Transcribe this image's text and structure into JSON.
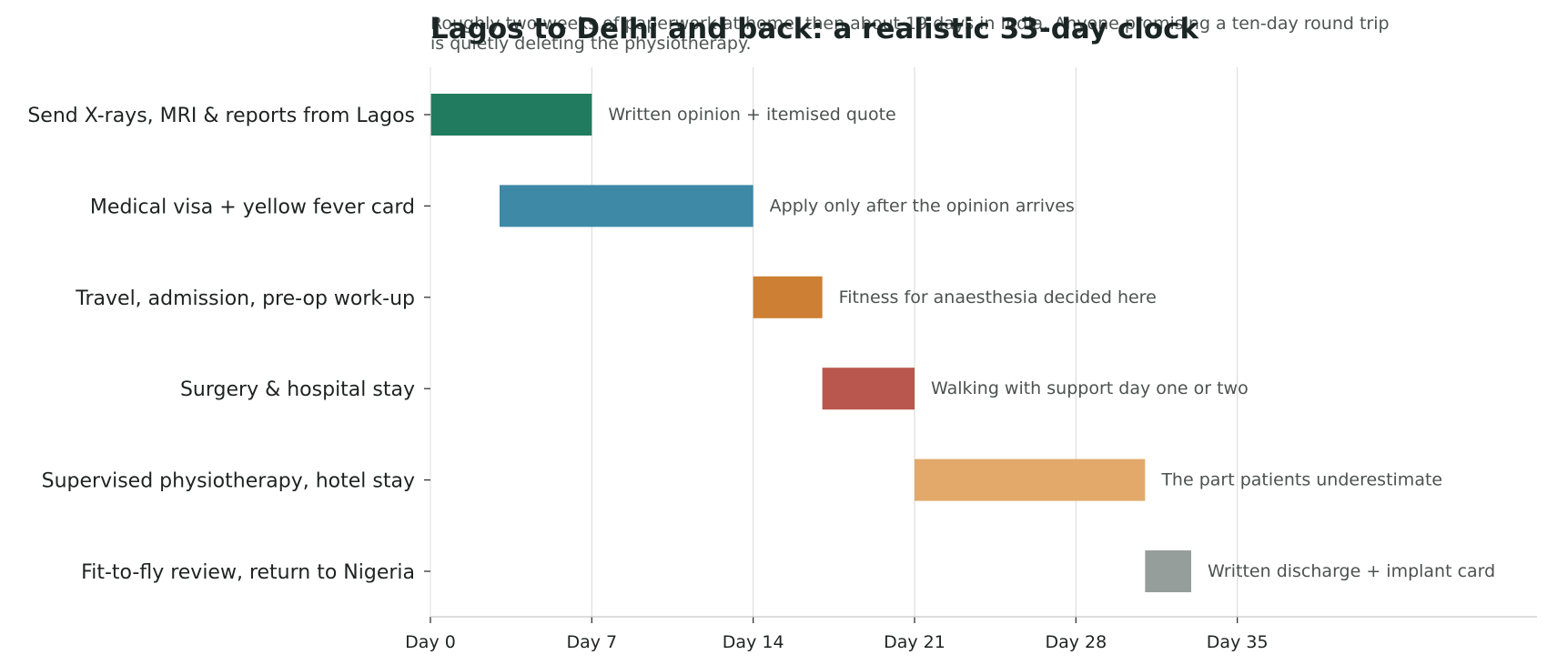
{
  "chart_data": {
    "type": "bar",
    "orientation": "horizontal-gantt",
    "title": "Lagos to Delhi and back: a realistic 33-day clock",
    "subtitle": "Roughly two weeks of paperwork at home, then about 19 days in India. Anyone promising a ten-day round trip is quietly deleting the physiotherapy.",
    "xlim": [
      0,
      48
    ],
    "x_ticks": [
      {
        "value": 0,
        "label": "Day 0"
      },
      {
        "value": 7,
        "label": "Day 7"
      },
      {
        "value": 14,
        "label": "Day 14"
      },
      {
        "value": 21,
        "label": "Day 21"
      },
      {
        "value": 28,
        "label": "Day 28"
      },
      {
        "value": 35,
        "label": "Day 35"
      }
    ],
    "grid": true,
    "tasks": [
      {
        "label": "Send X-rays, MRI & reports from Lagos",
        "start": 0,
        "end": 7,
        "color": "#217b5f",
        "note": "Written opinion + itemised quote"
      },
      {
        "label": "Medical visa + yellow fever card",
        "start": 3,
        "end": 14,
        "color": "#3d89a6",
        "note": "Apply only after the opinion arrives"
      },
      {
        "label": "Travel, admission, pre-op work-up",
        "start": 14,
        "end": 17,
        "color": "#cd7f34",
        "note": "Fitness for anaesthesia decided here"
      },
      {
        "label": "Surgery & hospital stay",
        "start": 17,
        "end": 21,
        "color": "#b9564d",
        "note": "Walking with support day one or two"
      },
      {
        "label": "Supervised physiotherapy, hotel stay",
        "start": 21,
        "end": 31,
        "color": "#e2a96b",
        "note": "The part patients underestimate"
      },
      {
        "label": "Fit-to-fly review, return to Nigeria",
        "start": 31,
        "end": 33,
        "color": "#969e9b",
        "note": "Written discharge + implant card"
      }
    ]
  }
}
